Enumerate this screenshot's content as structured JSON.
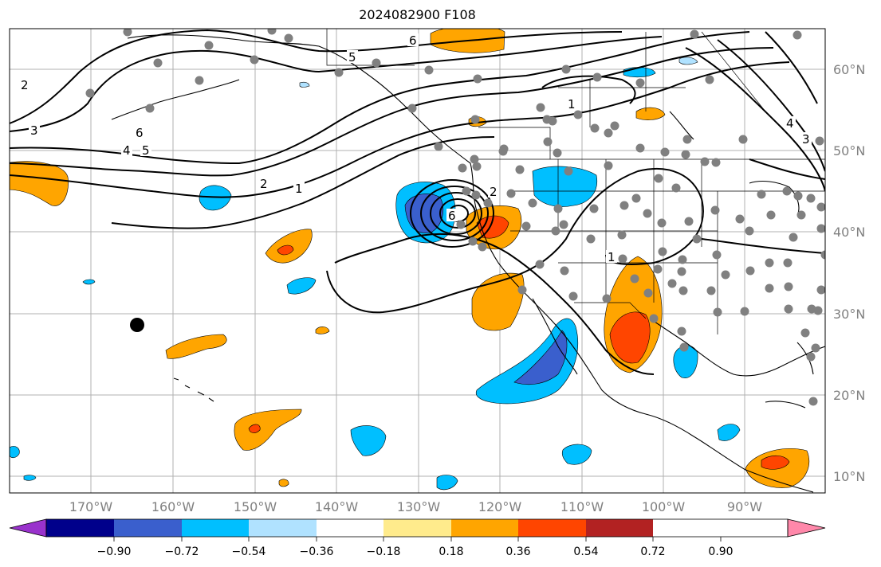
{
  "title": "2024082900 F108",
  "lat_labels": [
    "10°N",
    "20°N",
    "30°N",
    "40°N",
    "50°N",
    "60°N"
  ],
  "lon_labels": [
    "170°W",
    "160°W",
    "150°W",
    "140°W",
    "130°W",
    "120°W",
    "110°W",
    "100°W",
    "90°W"
  ],
  "colorbar": {
    "ticks": [
      "−0.90",
      "−0.72",
      "−0.54",
      "−0.36",
      "−0.18",
      "0.18",
      "0.36",
      "0.54",
      "0.72",
      "0.90"
    ],
    "colors": [
      "#9932cc",
      "#00008b",
      "#3a5fcd",
      "#00bfff",
      "#b0e2ff",
      "#ffffff",
      "#ffeb8c",
      "#ffa500",
      "#ff4500",
      "#b22222",
      "#ff88aa"
    ]
  },
  "contour_labels": [
    "6",
    "5",
    "2",
    "3",
    "4",
    "5",
    "6",
    "2",
    "1",
    "1",
    "6",
    "4",
    "3",
    "2",
    "1"
  ],
  "fill_colors": {
    "orange": "#ffa500",
    "red": "#ff4500",
    "light_blue": "#00bfff",
    "dark_blue": "#3a5fcd",
    "pale_blue": "#b0e2ff",
    "yellow": "#ffeb8c"
  },
  "station_color": "#808080"
}
